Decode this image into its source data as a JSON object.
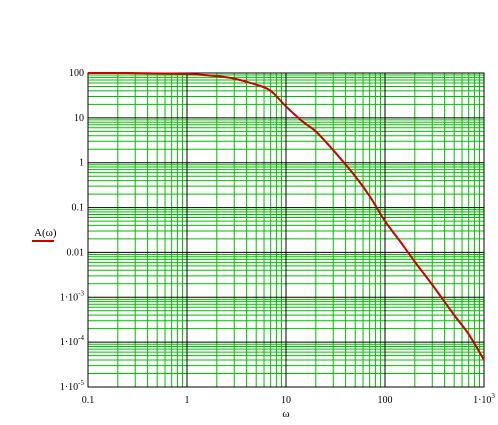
{
  "chart_data": {
    "type": "line",
    "title": "",
    "xlabel": "ω",
    "ylabel": "",
    "xscale": "log",
    "yscale": "log",
    "xlim": [
      0.1,
      1000
    ],
    "ylim": [
      1e-05,
      100
    ],
    "grid": true,
    "x_ticks": [
      {
        "value": 0.1,
        "base": "0.1",
        "exp": ""
      },
      {
        "value": 1,
        "base": "1",
        "exp": ""
      },
      {
        "value": 10,
        "base": "10",
        "exp": ""
      },
      {
        "value": 100,
        "base": "100",
        "exp": ""
      },
      {
        "value": 1000,
        "base": "1·10",
        "exp": "3"
      }
    ],
    "y_ticks": [
      {
        "value": 100,
        "base": "100",
        "exp": ""
      },
      {
        "value": 10,
        "base": "10",
        "exp": ""
      },
      {
        "value": 1,
        "base": "1",
        "exp": ""
      },
      {
        "value": 0.1,
        "base": "0.1",
        "exp": ""
      },
      {
        "value": 0.01,
        "base": "0.01",
        "exp": ""
      },
      {
        "value": 0.001,
        "base": "1·10",
        "exp": "-3"
      },
      {
        "value": 0.0001,
        "base": "1·10",
        "exp": "-4"
      },
      {
        "value": 1e-05,
        "base": "1·10",
        "exp": "-5"
      }
    ],
    "series": [
      {
        "name": "A(ω)",
        "color": "#cc0000",
        "x": [
          0.1,
          0.3,
          1,
          2,
          3,
          5,
          7,
          10,
          15,
          20,
          30,
          50,
          70,
          100,
          150,
          200,
          300,
          500,
          700,
          1000
        ],
        "y": [
          100,
          99.5,
          95,
          85,
          75,
          55,
          40,
          18,
          8,
          5,
          1.9,
          0.5,
          0.18,
          0.05,
          0.015,
          0.0062,
          0.0019,
          0.0004,
          0.00015,
          4e-05
        ]
      }
    ],
    "gridline_color": "#00c000",
    "major_gridline_color": "#000000"
  }
}
